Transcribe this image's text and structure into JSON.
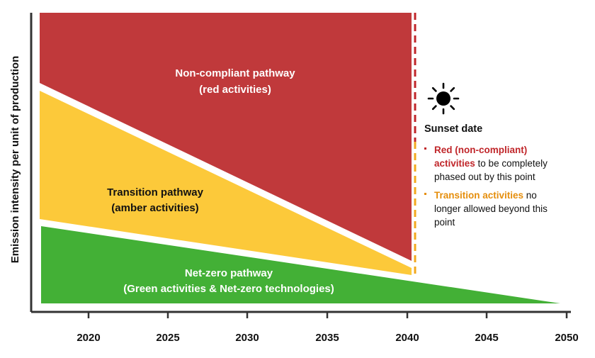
{
  "colors": {
    "red": "#c0393b",
    "amber": "#fcc93a",
    "green": "#43b036",
    "axis": "#333333",
    "red_text": "#c0262a",
    "amber_text": "#e58e0c"
  },
  "yaxis": {
    "label": "Emission intensity per unit of production"
  },
  "xaxis": {
    "ticks": [
      "2020",
      "2025",
      "2030",
      "2035",
      "2040",
      "2045",
      "2050"
    ]
  },
  "zones": {
    "red": {
      "line1": "Non-compliant pathway",
      "line2": "(red activities)"
    },
    "amber": {
      "line1": "Transition pathway",
      "line2": "(amber activities)"
    },
    "green": {
      "line1": "Net-zero pathway",
      "line2": "(Green activities & Net-zero technologies)"
    }
  },
  "sunset": {
    "icon": "sun-icon",
    "title": "Sunset date",
    "bullet1": {
      "highlight_a": "Red (non-compliant)",
      "highlight_b": "activities",
      "rest_b": " to be completely",
      "line3": "phased out by this point"
    },
    "bullet2": {
      "highlight": "Transition activities",
      "rest": " no",
      "line2": "longer allowed beyond this",
      "line3": "point"
    }
  }
}
